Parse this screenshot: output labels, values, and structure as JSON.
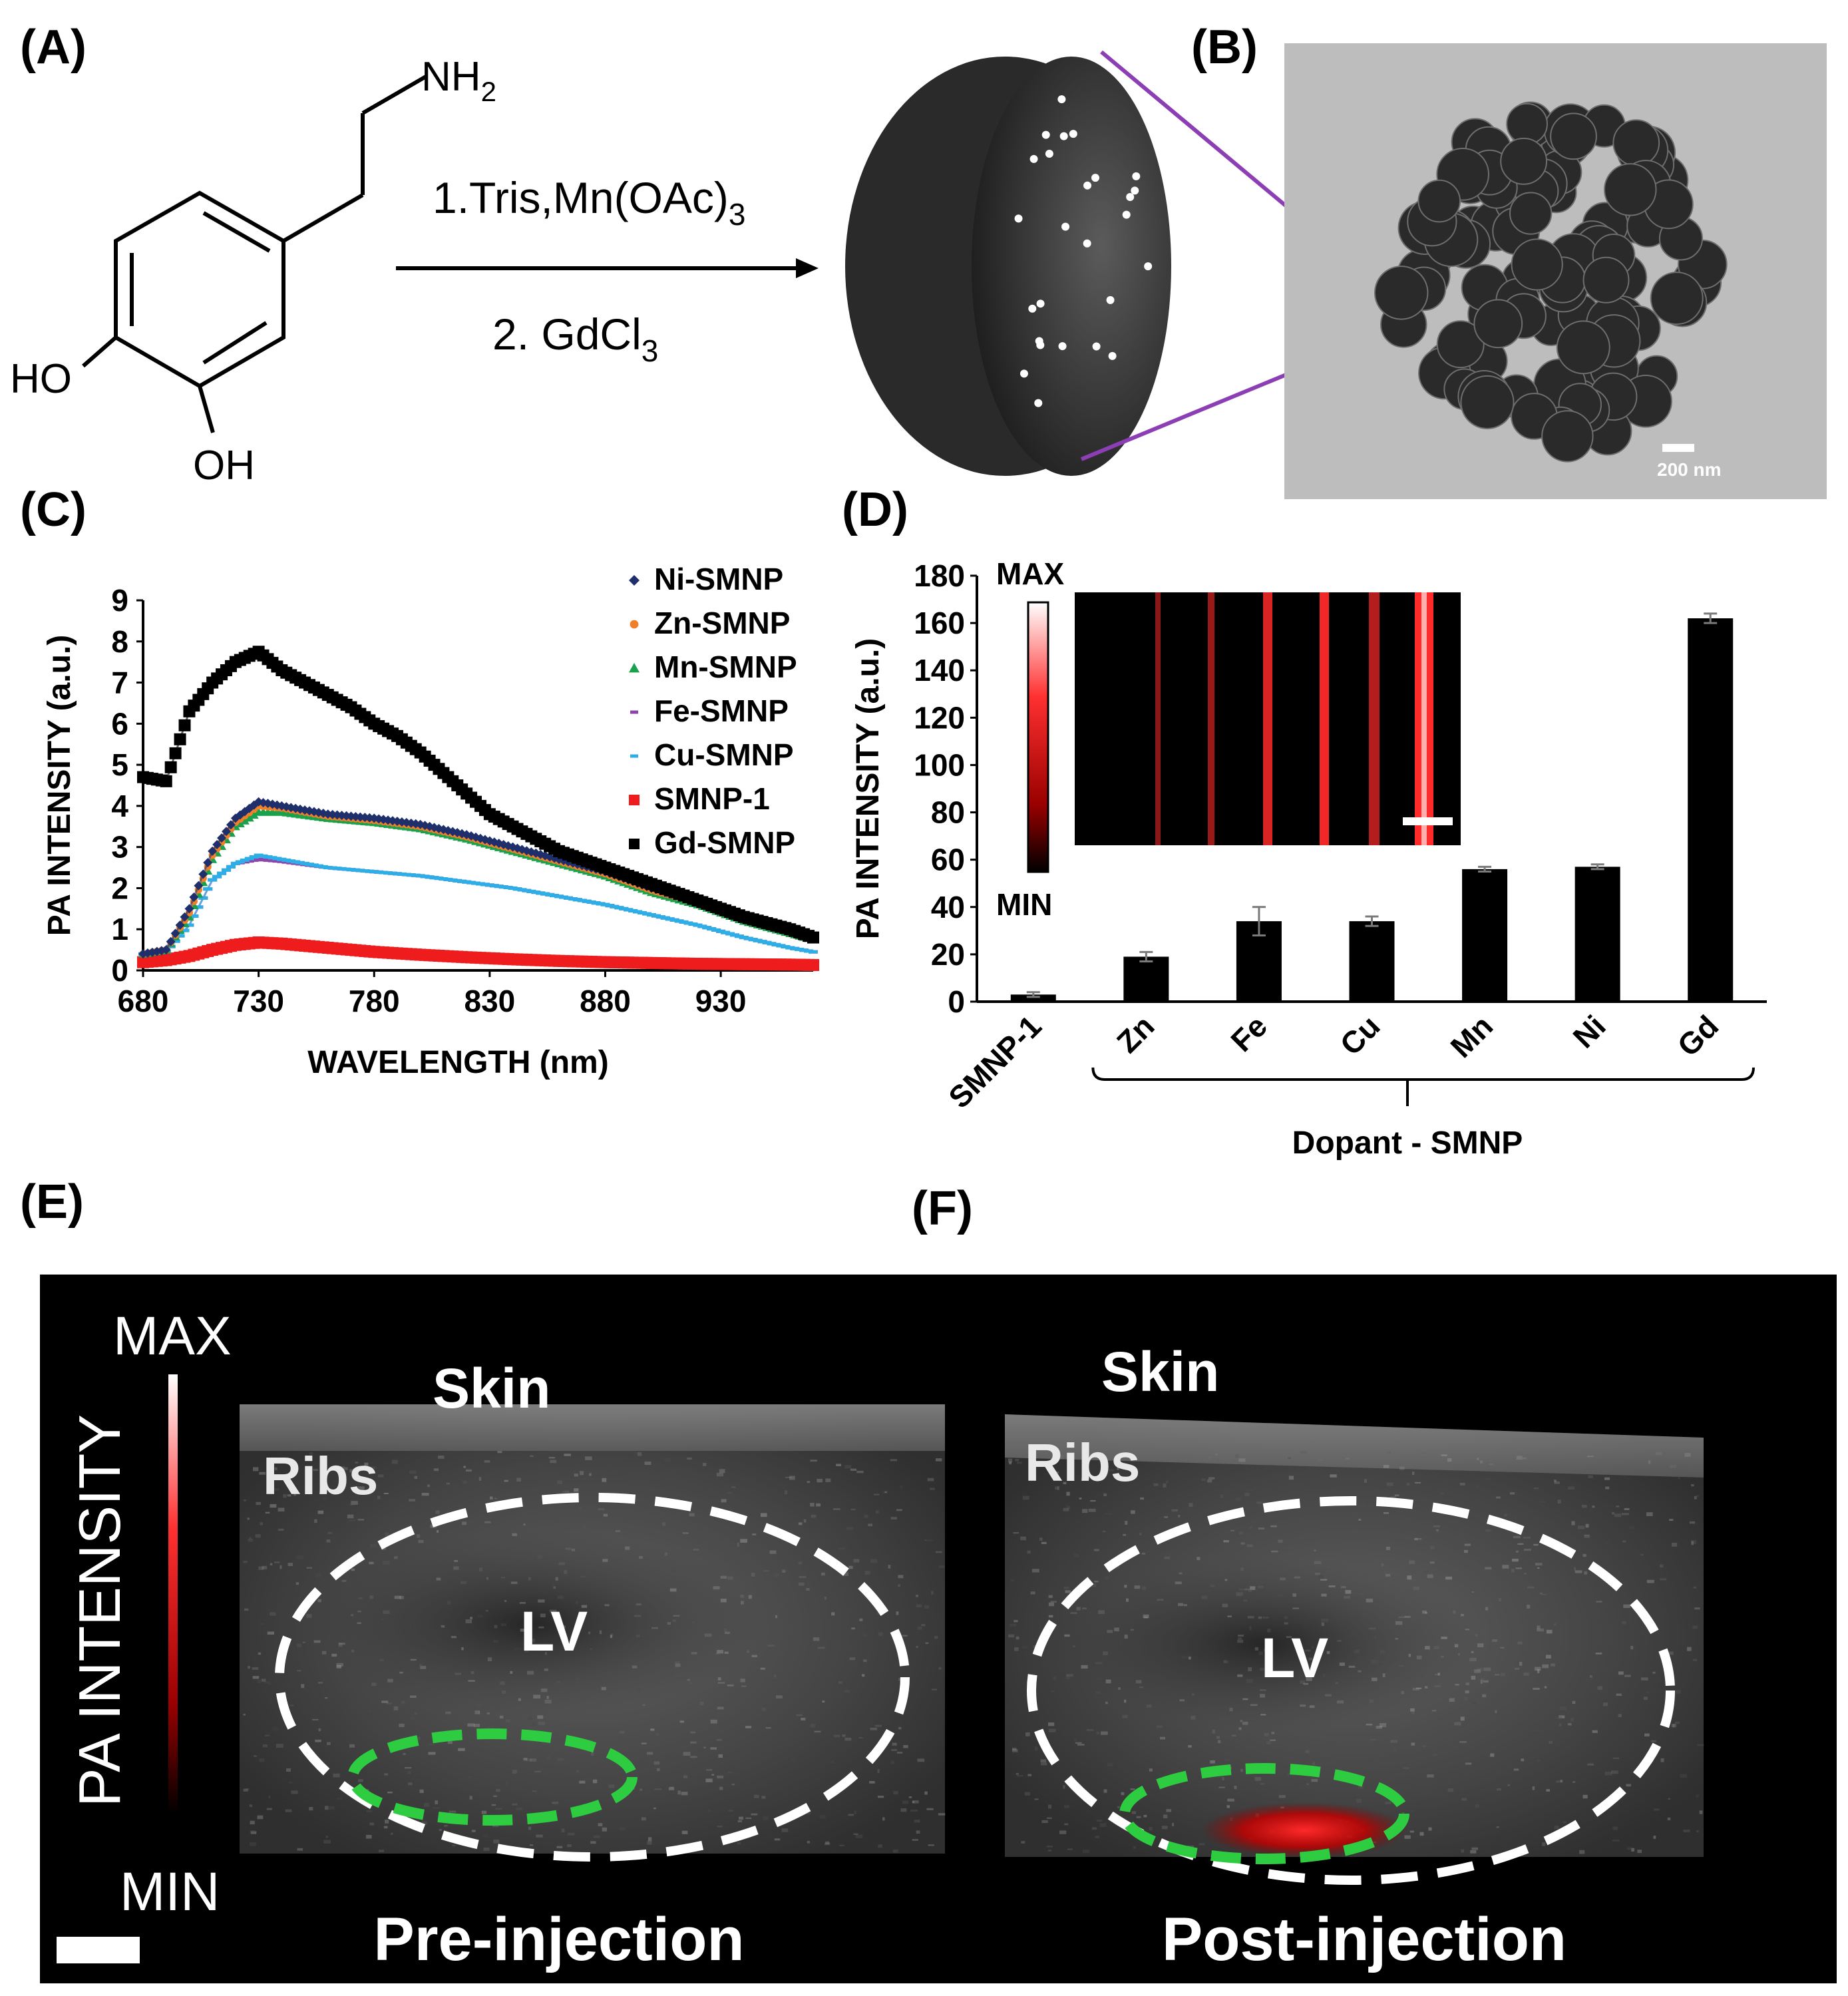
{
  "panels": {
    "A": {
      "label": "(A)",
      "groups": {
        "amine": "NH",
        "amine_sub": "2",
        "ho": "HO",
        "oh": "OH"
      },
      "reaction": {
        "step1": "1.Tris,Mn(OAc)",
        "step1_sub": "3",
        "step2": "2. GdCl",
        "step2_sub": "3"
      }
    },
    "B": {
      "label": "(B)",
      "scale_bar": "200 nm"
    },
    "C": {
      "label": "(C)"
    },
    "D": {
      "label": "(D)",
      "colorbar_max": "MAX",
      "colorbar_min": "MIN",
      "group_label": "Dopant - SMNP"
    },
    "E": {
      "label": "(E)",
      "colorbar_title": "PA INTENSITY",
      "colorbar_max": "MAX",
      "colorbar_min": "MIN",
      "skin": "Skin",
      "ribs": "Ribs",
      "lv": "LV",
      "caption": "Pre-injection"
    },
    "F": {
      "label": "(F)",
      "skin": "Skin",
      "ribs": "Ribs",
      "lv": "LV",
      "caption": "Post-injection"
    }
  },
  "chart_data": [
    {
      "type": "scatter",
      "panel": "C",
      "xlabel": "WAVELENGTH (nm)",
      "ylabel": "PA INTENSITY (a.u.)",
      "xlim": [
        680,
        970
      ],
      "ylim": [
        0,
        9
      ],
      "xticks": [
        "680",
        "730",
        "780",
        "830",
        "880",
        "930"
      ],
      "yticks": [
        "0",
        "1",
        "2",
        "3",
        "4",
        "5",
        "6",
        "7",
        "8",
        "9"
      ],
      "legend_position": "top-right",
      "series": [
        {
          "name": "Ni-SMNP",
          "color": "#1f2f6b",
          "marker": "diamond",
          "x": [
            680,
            690,
            700,
            710,
            720,
            730,
            740,
            760,
            780,
            800,
            820,
            840,
            860,
            880,
            900,
            920,
            940,
            960,
            970
          ],
          "y": [
            0.4,
            0.5,
            1.5,
            2.9,
            3.7,
            4.1,
            4.0,
            3.8,
            3.7,
            3.55,
            3.3,
            3.0,
            2.7,
            2.4,
            2.0,
            1.7,
            1.3,
            1.0,
            0.85
          ]
        },
        {
          "name": "Zn-SMNP",
          "color": "#f07f2a",
          "marker": "circle",
          "x": [
            680,
            690,
            700,
            710,
            720,
            730,
            740,
            760,
            780,
            800,
            820,
            840,
            860,
            880,
            900,
            920,
            940,
            960,
            970
          ],
          "y": [
            0.4,
            0.5,
            1.4,
            2.8,
            3.6,
            4.0,
            3.95,
            3.75,
            3.65,
            3.5,
            3.25,
            2.95,
            2.65,
            2.35,
            1.95,
            1.65,
            1.25,
            0.95,
            0.8
          ]
        },
        {
          "name": "Mn-SMNP",
          "color": "#1aa14b",
          "marker": "triangle",
          "x": [
            680,
            690,
            700,
            710,
            720,
            730,
            740,
            760,
            780,
            800,
            820,
            840,
            860,
            880,
            900,
            920,
            940,
            960,
            970
          ],
          "y": [
            0.4,
            0.5,
            1.3,
            2.7,
            3.5,
            3.85,
            3.85,
            3.7,
            3.6,
            3.45,
            3.2,
            2.9,
            2.6,
            2.3,
            1.9,
            1.6,
            1.2,
            0.9,
            0.75
          ]
        },
        {
          "name": "Fe-SMNP",
          "color": "#8e44ad",
          "marker": "dash",
          "x": [
            680,
            690,
            700,
            710,
            720,
            730,
            740,
            760,
            780,
            800,
            820,
            840,
            860,
            880,
            900,
            920,
            940,
            960,
            970
          ],
          "y": [
            0.4,
            0.45,
            1.1,
            2.2,
            2.6,
            2.7,
            2.65,
            2.5,
            2.4,
            2.3,
            2.15,
            2.0,
            1.8,
            1.6,
            1.35,
            1.1,
            0.8,
            0.55,
            0.45
          ]
        },
        {
          "name": "Cu-SMNP",
          "color": "#2eaee6",
          "marker": "dash",
          "x": [
            680,
            690,
            700,
            710,
            720,
            730,
            740,
            760,
            780,
            800,
            820,
            840,
            860,
            880,
            900,
            920,
            940,
            960,
            970
          ],
          "y": [
            0.4,
            0.45,
            1.1,
            2.2,
            2.6,
            2.8,
            2.7,
            2.5,
            2.4,
            2.3,
            2.15,
            2.0,
            1.8,
            1.6,
            1.35,
            1.1,
            0.8,
            0.55,
            0.45
          ]
        },
        {
          "name": "SMNP-1",
          "color": "#ee1c1c",
          "marker": "square",
          "x": [
            680,
            690,
            700,
            710,
            720,
            730,
            740,
            760,
            780,
            800,
            820,
            840,
            860,
            880,
            900,
            920,
            940,
            960,
            970
          ],
          "y": [
            0.2,
            0.25,
            0.35,
            0.5,
            0.62,
            0.68,
            0.65,
            0.55,
            0.45,
            0.38,
            0.32,
            0.27,
            0.23,
            0.2,
            0.18,
            0.16,
            0.15,
            0.14,
            0.13
          ]
        },
        {
          "name": "Gd-SMNP",
          "color": "#000000",
          "marker": "square",
          "x": [
            680,
            690,
            700,
            710,
            720,
            730,
            740,
            750,
            760,
            770,
            780,
            790,
            800,
            810,
            820,
            830,
            840,
            850,
            860,
            880,
            900,
            920,
            940,
            960,
            970
          ],
          "y": [
            4.7,
            4.6,
            6.3,
            7.0,
            7.5,
            7.75,
            7.3,
            7.0,
            6.7,
            6.4,
            6.0,
            5.7,
            5.3,
            4.8,
            4.3,
            3.8,
            3.5,
            3.2,
            2.9,
            2.5,
            2.1,
            1.7,
            1.3,
            1.0,
            0.8
          ]
        }
      ]
    },
    {
      "type": "bar",
      "panel": "D",
      "ylabel": "PA INTENSITY (a.u.)",
      "ylim": [
        0,
        180
      ],
      "yticks": [
        "0",
        "20",
        "40",
        "60",
        "80",
        "100",
        "120",
        "140",
        "160",
        "180"
      ],
      "categories": [
        "SMNP-1",
        "Zn",
        "Fe",
        "Cu",
        "Mn",
        "Ni",
        "Gd"
      ],
      "values": [
        3,
        19,
        34,
        34,
        56,
        57,
        162
      ],
      "errors": [
        1,
        2,
        6,
        2,
        1,
        1,
        2
      ]
    }
  ]
}
